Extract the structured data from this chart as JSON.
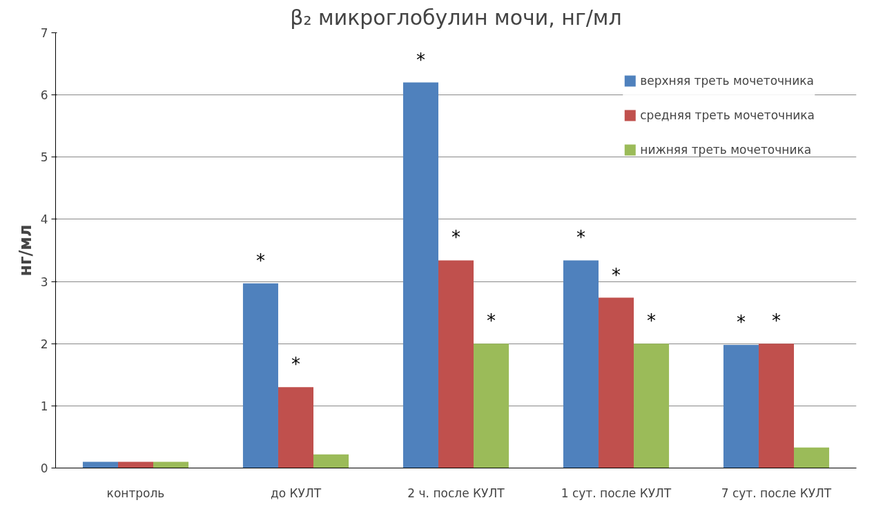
{
  "chart_data": {
    "type": "bar",
    "title": "β₂ микроглобулин мочи, нг/мл",
    "ylabel": "нг/мл",
    "categories": [
      "контроль",
      "до КУЛТ",
      "2 ч. после КУЛТ",
      "1 сут. после КУЛТ",
      "7 сут. после КУЛТ"
    ],
    "series": [
      {
        "name": "верхняя треть мочеточника",
        "color": "#4f81bd",
        "values": [
          0.1,
          2.97,
          6.2,
          3.34,
          1.98
        ],
        "value_labels": [
          null,
          "*",
          "*",
          "*",
          "*"
        ]
      },
      {
        "name": "средняя треть мочеточника",
        "color": "#c0504d",
        "values": [
          0.1,
          1.3,
          3.34,
          2.74,
          2.0
        ],
        "value_labels": [
          null,
          "*",
          "*",
          "*",
          "*"
        ]
      },
      {
        "name": "нижняя треть мочеточника",
        "color": "#9bbb59",
        "values": [
          0.1,
          0.22,
          2.0,
          2.0,
          0.33
        ],
        "value_labels": [
          null,
          null,
          "*",
          "*",
          null
        ]
      }
    ],
    "ylim": [
      0,
      7
    ],
    "yticks": [
      0,
      1,
      2,
      3,
      4,
      5,
      6,
      7
    ],
    "grid": "y",
    "legend": "top right"
  }
}
